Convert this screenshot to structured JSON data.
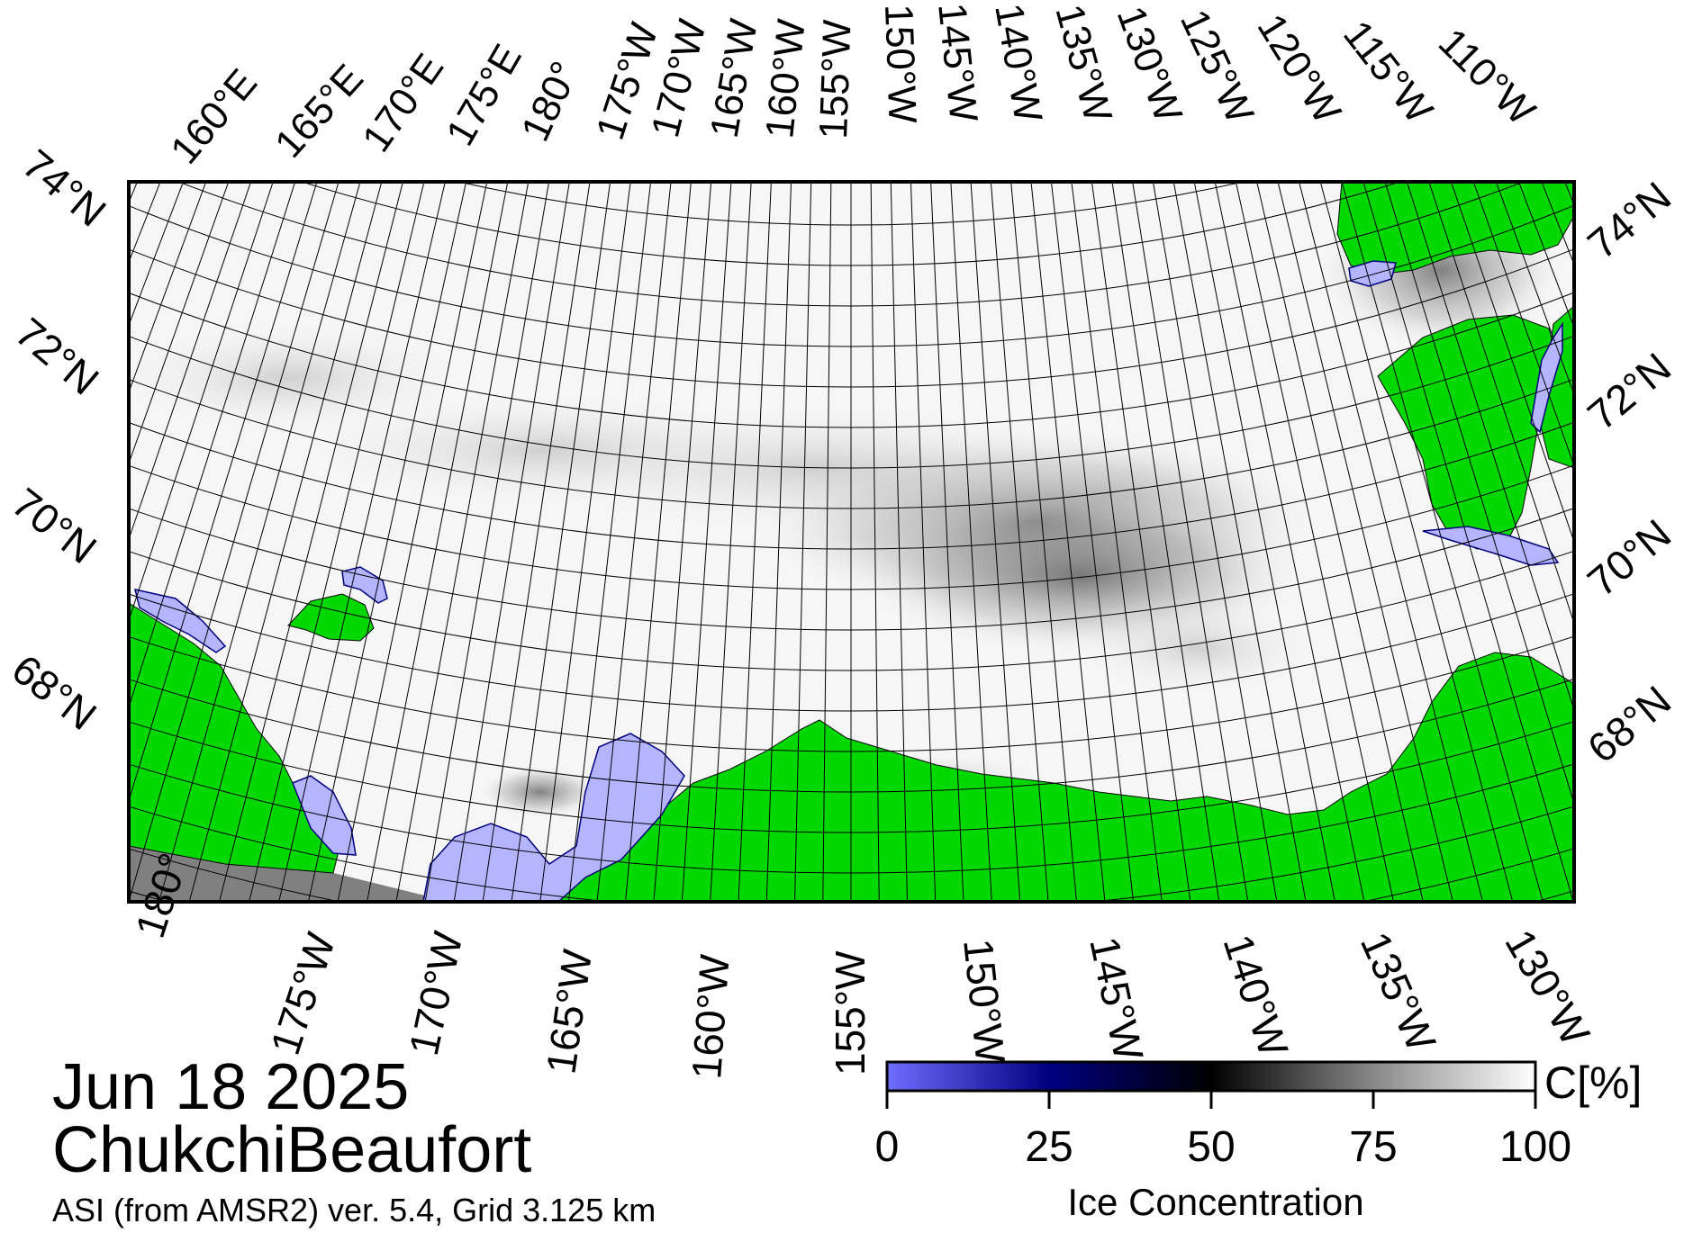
{
  "map": {
    "top_lon_labels": [
      "160°E",
      "165°E",
      "170°E",
      "175°E",
      "180°",
      "175°W",
      "170°W",
      "165°W",
      "160°W",
      "155°W",
      "150°W",
      "145°W",
      "140°W",
      "135°W",
      "130°W",
      "125°W",
      "120°W",
      "115°W",
      "110°W"
    ],
    "bottom_lon_labels": [
      "180°",
      "175°W",
      "170°W",
      "165°W",
      "160°W",
      "155°W",
      "150°W",
      "145°W",
      "140°W",
      "135°W",
      "130°W"
    ],
    "left_lat_labels": [
      "74°N",
      "72°N",
      "70°N",
      "68°N"
    ],
    "right_lat_labels": [
      "74°N",
      "72°N",
      "70°N",
      "68°N"
    ],
    "colors": {
      "land": "#00d800",
      "open_water": "#b4b4ff",
      "ice_high": "#ffffff",
      "ice_mid": "#6e6e6e",
      "no_data": "#808080",
      "frame": "#000000"
    }
  },
  "colorbar": {
    "unit": "C[%]",
    "ticks": [
      "0",
      "25",
      "50",
      "75",
      "100"
    ],
    "title": "Ice Concentration",
    "stops": [
      {
        "value": 0,
        "color": "#6e6eff"
      },
      {
        "value": 25,
        "color": "#000080"
      },
      {
        "value": 50,
        "color": "#000000"
      },
      {
        "value": 75,
        "color": "#888888"
      },
      {
        "value": 100,
        "color": "#ffffff"
      }
    ]
  },
  "info": {
    "date": "Jun 18 2025",
    "region": "ChukchiBeaufort",
    "product": "ASI (from AMSR2) ver. 5.4,  Grid 3.125 km"
  }
}
